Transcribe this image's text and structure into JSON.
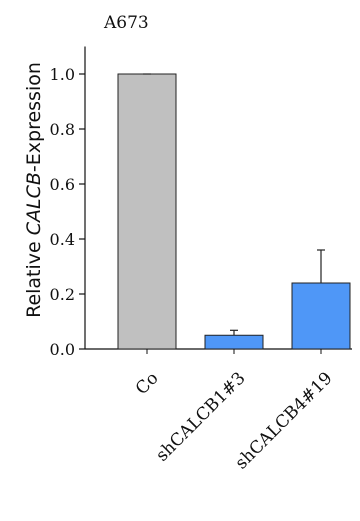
{
  "chart_data": {
    "type": "bar",
    "title": "A673",
    "ylabel": {
      "prefix": "Relative ",
      "gene": "CALCB",
      "suffix": "-Expression"
    },
    "categories": [
      "Co",
      "shCALCB1#3",
      "shCALCB4#19"
    ],
    "values": [
      1.0,
      0.05,
      0.24
    ],
    "errors": [
      0.0,
      0.018,
      0.12
    ],
    "bar_colors": [
      "#c0c0c0",
      "#4f97f7",
      "#4f97f7"
    ],
    "ylim": [
      0,
      1.1
    ],
    "yticks": [
      "0.0",
      "0.2",
      "0.4",
      "0.6",
      "0.8",
      "1.0"
    ],
    "ytick_values": [
      0.0,
      0.2,
      0.4,
      0.6,
      0.8,
      1.0
    ],
    "grid": false,
    "legend": "none"
  }
}
